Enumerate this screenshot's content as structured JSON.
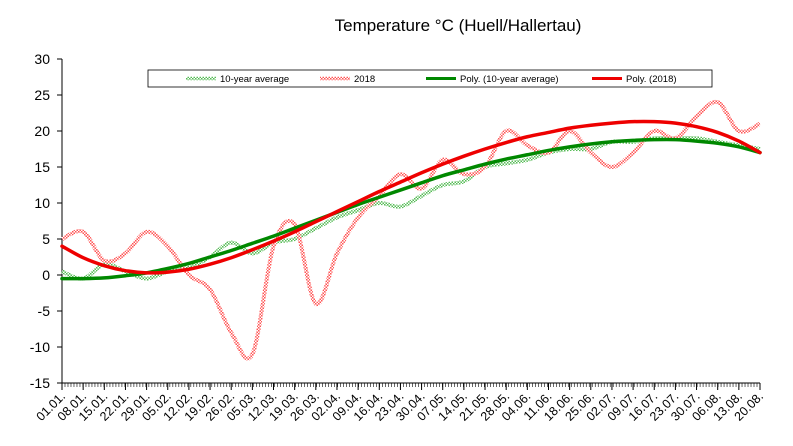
{
  "chart_data": {
    "type": "line",
    "title": "Temperature °C (Huell/Hallertau)",
    "xlabel": "",
    "ylabel": "",
    "ylim": [
      -15,
      30
    ],
    "yticks": [
      30,
      25,
      20,
      15,
      10,
      5,
      0,
      -5,
      -10,
      -15
    ],
    "x_categories": [
      "01.01.",
      "08.01.",
      "15.01.",
      "22.01.",
      "29.01.",
      "05.02.",
      "12.02.",
      "19.02.",
      "26.02.",
      "05.03.",
      "12.03.",
      "19.03.",
      "26.03.",
      "02.04.",
      "09.04.",
      "16.04.",
      "23.04.",
      "30.04.",
      "07.05.",
      "14.05.",
      "21.05.",
      "28.05.",
      "04.06.",
      "11.06.",
      "18.06.",
      "25.06.",
      "02.07.",
      "09.07.",
      "16.07.",
      "23.07.",
      "30.07.",
      "06.08.",
      "13.08.",
      "20.08."
    ],
    "legend_position": "top",
    "series": [
      {
        "name": "10-year average",
        "style": "noisy",
        "color": "#55bb55",
        "values": [
          0.5,
          -0.5,
          1.5,
          0.5,
          -0.5,
          0.5,
          1,
          2.5,
          4.5,
          3,
          4.5,
          5,
          6.5,
          8,
          9,
          10,
          9.5,
          11,
          12.5,
          13,
          15,
          15.5,
          16,
          17,
          17.5,
          17.5,
          18.5,
          18.5,
          19,
          19,
          19,
          18.5,
          18,
          17.5
        ]
      },
      {
        "name": "2018",
        "style": "noisy",
        "color": "#ff5555",
        "values": [
          5,
          6,
          2,
          3,
          6,
          4,
          0,
          -2,
          -8,
          -11,
          4,
          7,
          -4,
          3,
          8,
          11,
          14,
          12,
          16,
          14,
          15,
          20,
          18,
          17,
          20,
          17,
          15,
          17,
          20,
          19,
          22,
          24,
          20,
          21
        ]
      },
      {
        "name": "Poly. (10-year average)",
        "style": "trend",
        "color": "#008800",
        "values": [
          -0.5,
          -0.5,
          -0.4,
          -0.1,
          0.3,
          0.9,
          1.6,
          2.5,
          3.4,
          4.4,
          5.4,
          6.5,
          7.6,
          8.7,
          9.8,
          10.8,
          11.8,
          12.8,
          13.8,
          14.6,
          15.4,
          16.1,
          16.7,
          17.3,
          17.8,
          18.2,
          18.5,
          18.7,
          18.8,
          18.8,
          18.6,
          18.3,
          17.8,
          17.0
        ]
      },
      {
        "name": "Poly. (2018)",
        "style": "trend",
        "color": "#ee0000",
        "values": [
          4.0,
          2.4,
          1.3,
          0.6,
          0.3,
          0.4,
          0.8,
          1.5,
          2.4,
          3.5,
          4.7,
          6.0,
          7.4,
          8.8,
          10.2,
          11.6,
          12.9,
          14.2,
          15.4,
          16.5,
          17.5,
          18.4,
          19.2,
          19.8,
          20.4,
          20.8,
          21.1,
          21.3,
          21.3,
          21.1,
          20.6,
          19.8,
          18.6,
          17.0
        ]
      }
    ]
  }
}
